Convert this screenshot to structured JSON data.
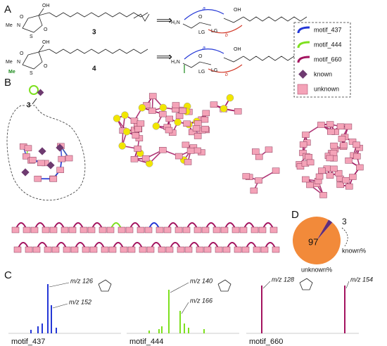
{
  "panels": {
    "a": "A",
    "b": "B",
    "c": "C",
    "d": "D"
  },
  "panel_a": {
    "compound_labels": [
      "3",
      "4"
    ],
    "structure_3_atoms": [
      "OH",
      "N",
      "Me",
      "S",
      "O",
      "O"
    ],
    "structure_4_atoms": [
      "OH",
      "N",
      "Me",
      "S",
      "O",
      "O",
      "Me"
    ],
    "fragment_3_labels": [
      "H₂N",
      "O",
      "LG",
      "OH",
      "LG",
      "a",
      "b"
    ],
    "fragment_4_labels": [
      "H₂N",
      "O",
      "LG",
      "OH",
      "LG",
      "a",
      "b"
    ]
  },
  "legend": [
    {
      "name": "motif_437",
      "color": "#2437d6"
    },
    {
      "name": "motif_444",
      "color": "#7ee01f"
    },
    {
      "name": "motif_660",
      "color": "#a3135f"
    },
    {
      "name": "known",
      "color": "#6e3a70"
    },
    {
      "name": "unknown",
      "color": "#f4a3b8"
    }
  ],
  "network_callout": "3",
  "pie": {
    "values": [
      97,
      3
    ],
    "labels": [
      "unknown%",
      "known%"
    ],
    "colors": [
      "#f28a3a",
      "#5e2d7c"
    ]
  },
  "panel_c": {
    "spectra": [
      {
        "motif": "motif_437",
        "color": "#2437d6",
        "annotations": [
          "m/z 126",
          "m/z 152"
        ]
      },
      {
        "motif": "motif_444",
        "color": "#7ee01f",
        "annotations": [
          "m/z 140",
          "m/z 166"
        ]
      },
      {
        "motif": "motif_660",
        "color": "#a3135f",
        "annotations": [
          "m/z 128",
          "m/z 154"
        ]
      }
    ]
  }
}
